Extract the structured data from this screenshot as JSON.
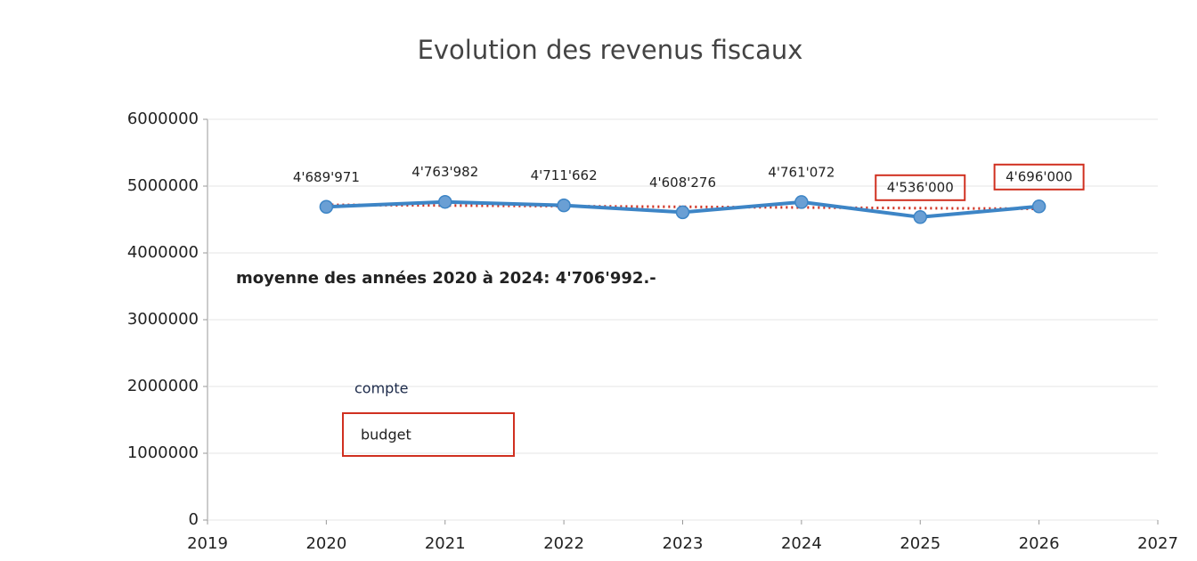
{
  "chart_data": {
    "type": "line",
    "title": "Evolution des revenus fiscaux",
    "annotation": "moyenne des années 2020 à 2024: 4'706'992.-",
    "series": [
      {
        "name": "compte",
        "color": "#3d85c6",
        "x": [
          2020,
          2021,
          2022,
          2023,
          2024
        ],
        "values": [
          4689971,
          4763982,
          4711662,
          4608276,
          4761072
        ],
        "value_labels": [
          "4'689'971",
          "4'763'982",
          "4'711'662",
          "4'608'276",
          "4'761'072"
        ]
      },
      {
        "name": "budget",
        "color": "#3d85c6",
        "x": [
          2025,
          2026
        ],
        "values": [
          4536000,
          4696000
        ],
        "value_labels": [
          "4'536'000",
          "4'696'000"
        ],
        "label_box_color": "#d03020"
      }
    ],
    "trend": {
      "x": [
        2020,
        2026
      ],
      "values": [
        4720000,
        4660000
      ],
      "color": "#d03020"
    },
    "xlim": [
      2019,
      2027
    ],
    "xticks": [
      2019,
      2020,
      2021,
      2022,
      2023,
      2024,
      2025,
      2026,
      2027
    ],
    "ylim": [
      0,
      6000000
    ],
    "yticks": [
      0,
      1000000,
      2000000,
      3000000,
      4000000,
      5000000,
      6000000
    ],
    "grid": true
  }
}
